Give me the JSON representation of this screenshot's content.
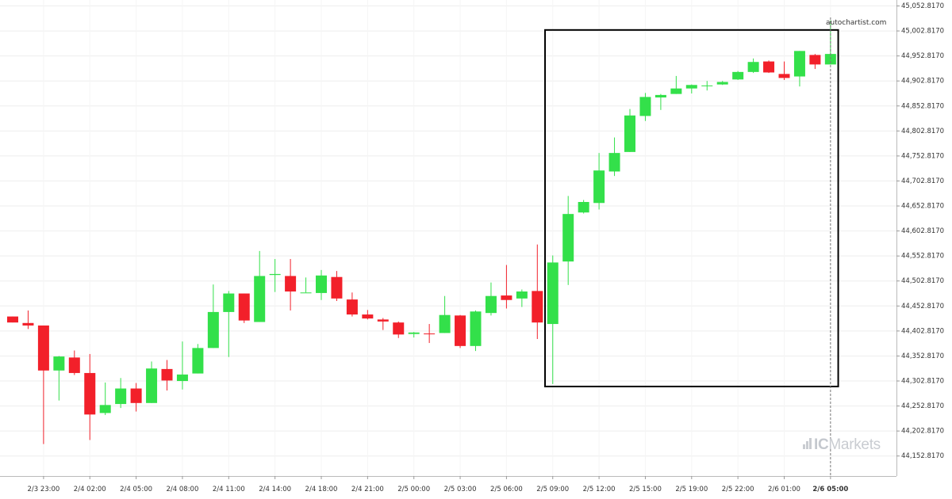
{
  "brand": {
    "watermark": "autochartist.com",
    "logo_ic": "IC",
    "logo_markets": "Markets"
  },
  "colors": {
    "up": "#33e04a",
    "down": "#f2202a",
    "box": "#000000",
    "grid": "#eeeeee"
  },
  "chart_data": {
    "type": "candlestick",
    "ylim": [
      44127.817,
      45052.817
    ],
    "y_ticks": [
      "45,052.8170",
      "45,002.8170",
      "44,952.8170",
      "44,902.8170",
      "44,852.8170",
      "44,802.8170",
      "44,752.8170",
      "44,702.8170",
      "44,652.8170",
      "44,602.8170",
      "44,552.8170",
      "44,502.8170",
      "44,452.8170",
      "44,402.8170",
      "44,352.8170",
      "44,302.8170",
      "44,252.8170",
      "44,202.8170",
      "44,152.8170"
    ],
    "x_ticks": [
      {
        "label": "2/3 23:00",
        "index": 2
      },
      {
        "label": "2/4 02:00",
        "index": 5
      },
      {
        "label": "2/4 05:00",
        "index": 8
      },
      {
        "label": "2/4 08:00",
        "index": 11
      },
      {
        "label": "2/4 11:00",
        "index": 14
      },
      {
        "label": "2/4 14:00",
        "index": 17
      },
      {
        "label": "2/4 18:00",
        "index": 20
      },
      {
        "label": "2/4 21:00",
        "index": 23
      },
      {
        "label": "2/5 00:00",
        "index": 26
      },
      {
        "label": "2/5 03:00",
        "index": 29
      },
      {
        "label": "2/5 06:00",
        "index": 32
      },
      {
        "label": "2/5 09:00",
        "index": 35
      },
      {
        "label": "2/5 12:00",
        "index": 38
      },
      {
        "label": "2/5 15:00",
        "index": 41
      },
      {
        "label": "2/5 19:00",
        "index": 44
      },
      {
        "label": "2/5 22:00",
        "index": 47
      },
      {
        "label": "2/6 01:00",
        "index": 50
      },
      {
        "label": "2/6 05:00",
        "index": 53,
        "bold": true
      }
    ],
    "candles": [
      {
        "o": 44431,
        "h": 44431,
        "l": 44419,
        "c": 44419
      },
      {
        "o": 44418,
        "h": 44443,
        "l": 44406,
        "c": 44413
      },
      {
        "o": 44413,
        "h": 44413,
        "l": 44176,
        "c": 44323
      },
      {
        "o": 44323,
        "h": 44352,
        "l": 44263,
        "c": 44351
      },
      {
        "o": 44349,
        "h": 44363,
        "l": 44314,
        "c": 44318
      },
      {
        "o": 44318,
        "h": 44356,
        "l": 44184,
        "c": 44235
      },
      {
        "o": 44238,
        "h": 44299,
        "l": 44234,
        "c": 44254
      },
      {
        "o": 44256,
        "h": 44308,
        "l": 44248,
        "c": 44287
      },
      {
        "o": 44287,
        "h": 44298,
        "l": 44241,
        "c": 44258
      },
      {
        "o": 44258,
        "h": 44341,
        "l": 44258,
        "c": 44327
      },
      {
        "o": 44326,
        "h": 44344,
        "l": 44283,
        "c": 44303
      },
      {
        "o": 44302,
        "h": 44381,
        "l": 44285,
        "c": 44315
      },
      {
        "o": 44317,
        "h": 44376,
        "l": 44317,
        "c": 44368
      },
      {
        "o": 44368,
        "h": 44495,
        "l": 44368,
        "c": 44440
      },
      {
        "o": 44440,
        "h": 44482,
        "l": 44350,
        "c": 44477
      },
      {
        "o": 44477,
        "h": 44477,
        "l": 44418,
        "c": 44423
      },
      {
        "o": 44420,
        "h": 44562,
        "l": 44420,
        "c": 44512
      },
      {
        "o": 44514,
        "h": 44546,
        "l": 44480,
        "c": 44516
      },
      {
        "o": 44512,
        "h": 44546,
        "l": 44443,
        "c": 44481
      },
      {
        "o": 44479,
        "h": 44509,
        "l": 44479,
        "c": 44479
      },
      {
        "o": 44478,
        "h": 44524,
        "l": 44464,
        "c": 44513
      },
      {
        "o": 44510,
        "h": 44522,
        "l": 44462,
        "c": 44467
      },
      {
        "o": 44465,
        "h": 44479,
        "l": 44431,
        "c": 44435
      },
      {
        "o": 44435,
        "h": 44444,
        "l": 44425,
        "c": 44427
      },
      {
        "o": 44425,
        "h": 44428,
        "l": 44404,
        "c": 44421
      },
      {
        "o": 44419,
        "h": 44421,
        "l": 44388,
        "c": 44395
      },
      {
        "o": 44396,
        "h": 44400,
        "l": 44389,
        "c": 44399
      },
      {
        "o": 44397,
        "h": 44416,
        "l": 44378,
        "c": 44396
      },
      {
        "o": 44398,
        "h": 44472,
        "l": 44398,
        "c": 44434
      },
      {
        "o": 44433,
        "h": 44434,
        "l": 44368,
        "c": 44372
      },
      {
        "o": 44372,
        "h": 44443,
        "l": 44362,
        "c": 44441
      },
      {
        "o": 44438,
        "h": 44499,
        "l": 44433,
        "c": 44472
      },
      {
        "o": 44473,
        "h": 44534,
        "l": 44447,
        "c": 44464
      },
      {
        "o": 44467,
        "h": 44485,
        "l": 44450,
        "c": 44481
      },
      {
        "o": 44482,
        "h": 44575,
        "l": 44386,
        "c": 44419
      },
      {
        "o": 44416,
        "h": 44553,
        "l": 44296,
        "c": 44539
      },
      {
        "o": 44541,
        "h": 44672,
        "l": 44494,
        "c": 44636
      },
      {
        "o": 44639,
        "h": 44664,
        "l": 44637,
        "c": 44660
      },
      {
        "o": 44658,
        "h": 44758,
        "l": 44645,
        "c": 44723
      },
      {
        "o": 44721,
        "h": 44789,
        "l": 44712,
        "c": 44758
      },
      {
        "o": 44760,
        "h": 44846,
        "l": 44760,
        "c": 44833
      },
      {
        "o": 44832,
        "h": 44878,
        "l": 44822,
        "c": 44870
      },
      {
        "o": 44869,
        "h": 44876,
        "l": 44844,
        "c": 44874
      },
      {
        "o": 44876,
        "h": 44912,
        "l": 44876,
        "c": 44887
      },
      {
        "o": 44887,
        "h": 44895,
        "l": 44877,
        "c": 44894
      },
      {
        "o": 44893,
        "h": 44902,
        "l": 44883,
        "c": 44893
      },
      {
        "o": 44895,
        "h": 44902,
        "l": 44894,
        "c": 44900
      },
      {
        "o": 44905,
        "h": 44922,
        "l": 44904,
        "c": 44920
      },
      {
        "o": 44920,
        "h": 44947,
        "l": 44918,
        "c": 44940
      },
      {
        "o": 44941,
        "h": 44943,
        "l": 44918,
        "c": 44919
      },
      {
        "o": 44916,
        "h": 44941,
        "l": 44904,
        "c": 44908
      },
      {
        "o": 44911,
        "h": 44962,
        "l": 44891,
        "c": 44962
      },
      {
        "o": 44954,
        "h": 44956,
        "l": 44926,
        "c": 44935
      },
      {
        "o": 44935,
        "h": 45023,
        "l": 44935,
        "c": 44956
      }
    ],
    "highlight_box": {
      "start_index": 34.5,
      "end_index": 53.5,
      "y_high": 45004,
      "y_low": 44291
    },
    "current_index": 53
  }
}
